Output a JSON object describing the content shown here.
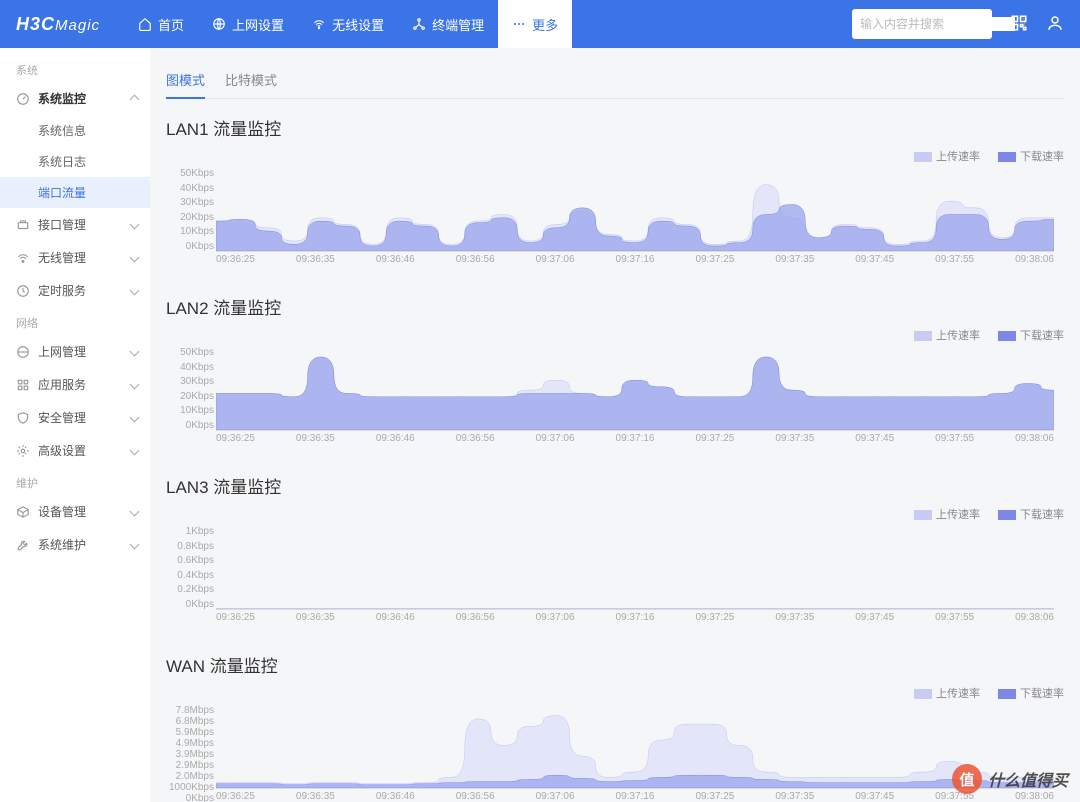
{
  "brand": {
    "h3c": "H3C",
    "magic": "Magic"
  },
  "nav": [
    {
      "icon": "home",
      "label": "首页"
    },
    {
      "icon": "globe",
      "label": "上网设置"
    },
    {
      "icon": "wifi",
      "label": "无线设置"
    },
    {
      "icon": "device",
      "label": "终端管理"
    },
    {
      "icon": "more",
      "label": "更多",
      "active": true
    }
  ],
  "search": {
    "placeholder": "输入内容并搜索"
  },
  "sidebar": {
    "groups": [
      {
        "label": "系统",
        "items": [
          {
            "icon": "dash",
            "label": "系统监控",
            "bold": true,
            "expanded": true,
            "subs": [
              {
                "label": "系统信息"
              },
              {
                "label": "系统日志"
              },
              {
                "label": "端口流量",
                "sel": true
              }
            ]
          },
          {
            "icon": "port",
            "label": "接口管理",
            "expandable": true
          },
          {
            "icon": "wifi2",
            "label": "无线管理",
            "expandable": true
          },
          {
            "icon": "clock",
            "label": "定时服务",
            "expandable": true
          }
        ]
      },
      {
        "label": "网络",
        "items": [
          {
            "icon": "net",
            "label": "上网管理",
            "expandable": true
          },
          {
            "icon": "app",
            "label": "应用服务",
            "expandable": true
          },
          {
            "icon": "shield",
            "label": "安全管理",
            "expandable": true
          },
          {
            "icon": "gear",
            "label": "高级设置",
            "expandable": true
          }
        ]
      },
      {
        "label": "维护",
        "items": [
          {
            "icon": "box",
            "label": "设备管理",
            "expandable": true
          },
          {
            "icon": "wrench",
            "label": "系统维护",
            "expandable": true
          }
        ]
      }
    ]
  },
  "tabs": [
    {
      "label": "图模式",
      "act": true
    },
    {
      "label": "比特模式"
    }
  ],
  "legend": {
    "upload": {
      "label": "上传速率",
      "color": "#c8ccf5"
    },
    "download": {
      "label": "下载速率",
      "color": "#7e87e6"
    }
  },
  "charts": {
    "time_labels": [
      "09:36:25",
      "09:36:35",
      "09:36:46",
      "09:36:56",
      "09:37:06",
      "09:37:16",
      "09:37:25",
      "09:37:35",
      "09:37:45",
      "09:37:55",
      "09:38:06"
    ],
    "style": {
      "upload_fill": "#dcdff8",
      "upload_stroke": "#c0c6f2",
      "download_fill": "#9ba4ed",
      "download_stroke": "#7e87e6",
      "fill_opacity": 0.75,
      "grid_color": "#eeeeee",
      "tick_color": "#aaaaaa",
      "tick_fontsize": 10
    },
    "panels": [
      {
        "title": "LAN1 流量监控",
        "y_labels": [
          "50Kbps",
          "40Kbps",
          "30Kbps",
          "20Kbps",
          "10Kbps",
          "0Kbps"
        ],
        "ymax": 50,
        "upload": [
          18,
          19,
          14,
          6,
          20,
          16,
          4,
          20,
          16,
          4,
          18,
          22,
          6,
          16,
          24,
          10,
          6,
          20,
          16,
          4,
          6,
          40,
          20,
          8,
          16,
          14,
          4,
          6,
          30,
          26,
          8,
          20,
          20
        ],
        "download": [
          18,
          19,
          12,
          4,
          18,
          15,
          3,
          18,
          15,
          3,
          17,
          20,
          5,
          14,
          26,
          9,
          5,
          18,
          15,
          3,
          5,
          22,
          28,
          8,
          15,
          13,
          3,
          5,
          22,
          22,
          7,
          18,
          19
        ]
      },
      {
        "title": "LAN2 流量监控",
        "y_labels": [
          "50Kbps",
          "40Kbps",
          "30Kbps",
          "20Kbps",
          "10Kbps",
          "0Kbps"
        ],
        "ymax": 50,
        "upload": [
          22,
          22,
          22,
          20,
          44,
          22,
          20,
          20,
          20,
          20,
          20,
          20,
          24,
          30,
          22,
          20,
          30,
          26,
          20,
          20,
          20,
          44,
          24,
          20,
          20,
          20,
          20,
          20,
          20,
          20,
          22,
          28,
          24
        ],
        "download": [
          22,
          22,
          22,
          20,
          44,
          22,
          20,
          20,
          20,
          20,
          20,
          20,
          22,
          22,
          22,
          20,
          30,
          26,
          20,
          20,
          20,
          44,
          24,
          20,
          20,
          20,
          20,
          20,
          20,
          20,
          22,
          28,
          24
        ]
      },
      {
        "title": "LAN3 流量监控",
        "y_labels": [
          "1Kbps",
          "0.8Kbps",
          "0.6Kbps",
          "0.4Kbps",
          "0.2Kbps",
          "0Kbps"
        ],
        "ymax": 1,
        "upload": [
          0,
          0,
          0,
          0,
          0,
          0,
          0,
          0,
          0,
          0,
          0,
          0,
          0,
          0,
          0,
          0,
          0,
          0,
          0,
          0,
          0,
          0,
          0,
          0,
          0,
          0,
          0,
          0,
          0,
          0,
          0,
          0,
          0
        ],
        "download": [
          0,
          0,
          0,
          0,
          0,
          0,
          0,
          0,
          0,
          0,
          0,
          0,
          0,
          0,
          0,
          0,
          0,
          0,
          0,
          0,
          0,
          0,
          0,
          0,
          0,
          0,
          0,
          0,
          0,
          0,
          0,
          0,
          0
        ]
      },
      {
        "title": "WAN 流量监控",
        "y_labels": [
          "7.8Mbps",
          "6.8Mbps",
          "5.9Mbps",
          "4.9Mbps",
          "3.9Mbps",
          "2.9Mbps",
          "2.0Mbps",
          "1000Kbps",
          "0Kbps"
        ],
        "ymax": 7.8,
        "upload": [
          0.5,
          0.5,
          0.5,
          0.4,
          0.5,
          0.5,
          0.4,
          0.4,
          0.5,
          1.0,
          6.5,
          4.0,
          5.8,
          6.8,
          3.0,
          1.0,
          1.5,
          4.5,
          6.0,
          6.0,
          4.0,
          1.5,
          1.0,
          1.0,
          1.0,
          1.0,
          1.0,
          1.5,
          2.5,
          1.5,
          1.0,
          1.0,
          1.0
        ],
        "download": [
          0.4,
          0.4,
          0.4,
          0.3,
          0.4,
          0.4,
          0.3,
          0.3,
          0.4,
          0.5,
          0.6,
          0.6,
          0.8,
          1.2,
          0.9,
          0.6,
          0.7,
          1.0,
          1.2,
          1.2,
          1.0,
          0.8,
          0.6,
          0.5,
          0.5,
          0.5,
          0.5,
          0.6,
          0.8,
          0.7,
          0.5,
          0.5,
          0.5
        ]
      }
    ]
  },
  "watermark": {
    "char": "值",
    "text": "什么值得买"
  }
}
